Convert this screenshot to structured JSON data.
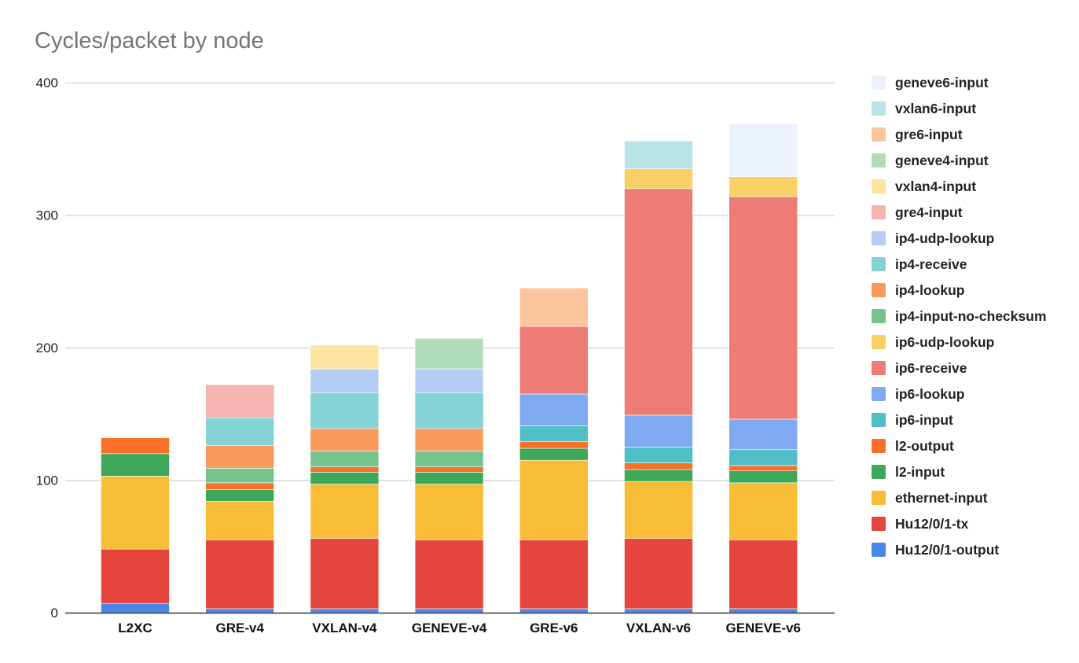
{
  "chart_data": {
    "type": "bar",
    "stacked": true,
    "title": "Cycles/packet by node",
    "xlabel": "",
    "ylabel": "",
    "ylim": [
      0,
      400
    ],
    "yticks": [
      0,
      100,
      200,
      300,
      400
    ],
    "grid": true,
    "legend_position": "right",
    "categories": [
      "L2XC",
      "GRE-v4",
      "VXLAN-v4",
      "GENEVE-v4",
      "GRE-v6",
      "VXLAN-v6",
      "GENEVE-v6"
    ],
    "series": [
      {
        "name": "Hu12/0/1-output",
        "color": "#4a86e8",
        "values": [
          7,
          3,
          3,
          3,
          3,
          3,
          3
        ]
      },
      {
        "name": "Hu12/0/1-tx",
        "color": "#e6453d",
        "values": [
          41,
          52,
          53,
          52,
          52,
          53,
          52
        ]
      },
      {
        "name": "ethernet-input",
        "color": "#f8bc37",
        "values": [
          55,
          29,
          41,
          42,
          60,
          43,
          43
        ]
      },
      {
        "name": "l2-input",
        "color": "#3ea85a",
        "values": [
          17,
          9,
          9,
          9,
          9,
          9,
          9
        ]
      },
      {
        "name": "l2-output",
        "color": "#fa7028",
        "values": [
          12,
          5,
          4,
          4,
          5,
          5,
          4
        ]
      },
      {
        "name": "ip6-input",
        "color": "#4fbfc6",
        "values": [
          0,
          0,
          0,
          0,
          12,
          12,
          12
        ]
      },
      {
        "name": "ip6-lookup",
        "color": "#7fa9f0",
        "values": [
          0,
          0,
          0,
          0,
          24,
          24,
          23
        ]
      },
      {
        "name": "ip6-receive",
        "color": "#ec7c75",
        "values": [
          0,
          0,
          0,
          0,
          51,
          171,
          168
        ]
      },
      {
        "name": "ip6-udp-lookup",
        "color": "#f9d063",
        "values": [
          0,
          0,
          0,
          0,
          0,
          15,
          15
        ]
      },
      {
        "name": "ip4-input-no-checksum",
        "color": "#76c28c",
        "values": [
          0,
          11,
          12,
          12,
          0,
          0,
          0
        ]
      },
      {
        "name": "ip4-lookup",
        "color": "#fa9b5c",
        "values": [
          0,
          17,
          17,
          17,
          0,
          0,
          0
        ]
      },
      {
        "name": "ip4-receive",
        "color": "#84d1d6",
        "values": [
          0,
          21,
          27,
          27,
          0,
          0,
          0
        ]
      },
      {
        "name": "ip4-udp-lookup",
        "color": "#b5cdf5",
        "values": [
          0,
          0,
          18,
          18,
          0,
          0,
          0
        ]
      },
      {
        "name": "gre4-input",
        "color": "#f4b4b0",
        "values": [
          0,
          25,
          0,
          0,
          0,
          0,
          0
        ]
      },
      {
        "name": "vxlan4-input",
        "color": "#fce4a1",
        "values": [
          0,
          0,
          18,
          0,
          0,
          0,
          0
        ]
      },
      {
        "name": "geneve4-input",
        "color": "#b1dcbc",
        "values": [
          0,
          0,
          0,
          23,
          0,
          0,
          0
        ]
      },
      {
        "name": "gre6-input",
        "color": "#fdc59e",
        "values": [
          0,
          0,
          0,
          0,
          29,
          0,
          0
        ]
      },
      {
        "name": "vxlan6-input",
        "color": "#b8e4e7",
        "values": [
          0,
          0,
          0,
          0,
          0,
          21,
          0
        ]
      },
      {
        "name": "geneve6-input",
        "color": "#ebf2fc",
        "values": [
          0,
          0,
          0,
          0,
          0,
          0,
          40
        ]
      }
    ]
  }
}
